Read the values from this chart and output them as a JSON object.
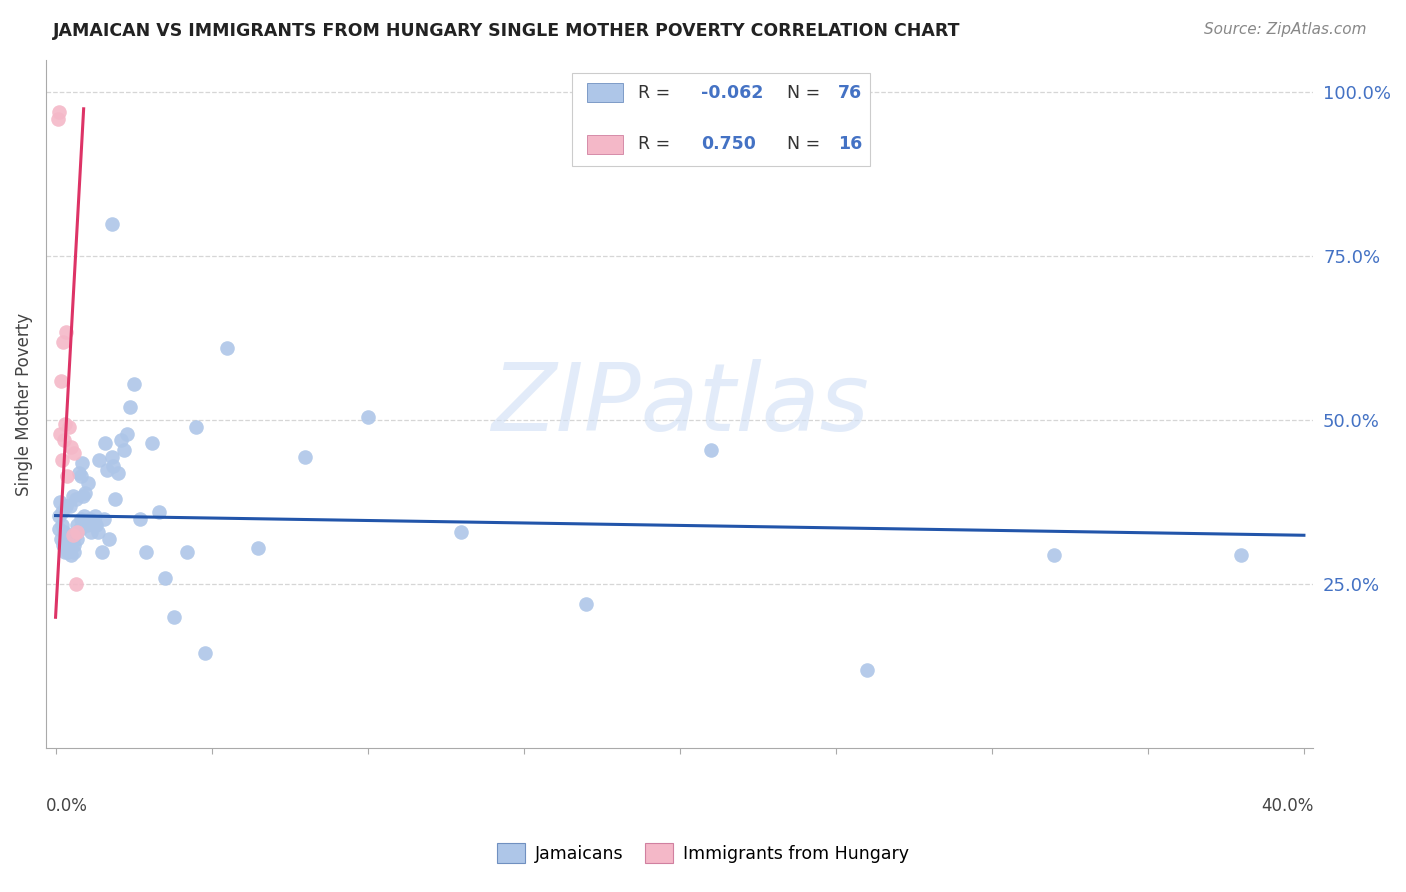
{
  "title": "JAMAICAN VS IMMIGRANTS FROM HUNGARY SINGLE MOTHER POVERTY CORRELATION CHART",
  "source": "Source: ZipAtlas.com",
  "ylabel": "Single Mother Poverty",
  "xlim": [
    0.0,
    0.4
  ],
  "ylim": [
    0.0,
    1.05
  ],
  "y_tick_positions": [
    0.25,
    0.5,
    0.75,
    1.0
  ],
  "y_tick_labels": [
    "25.0%",
    "50.0%",
    "75.0%",
    "100.0%"
  ],
  "jamaicans_R": -0.062,
  "jamaicans_N": 76,
  "hungary_R": 0.75,
  "hungary_N": 16,
  "legend_label_blue": "Jamaicans",
  "legend_label_pink": "Immigrants from Hungary",
  "blue_scatter": "#aec6e8",
  "pink_scatter": "#f4b8c8",
  "line_blue": "#2255aa",
  "line_pink": "#dd3366",
  "right_label_color": "#4472c4",
  "watermark_color": "#d0dff5",
  "watermark_text": "ZIPatlas",
  "j_x": [
    0.001,
    0.0012,
    0.0015,
    0.0018,
    0.002,
    0.0022,
    0.0025,
    0.0028,
    0.003,
    0.0032,
    0.0035,
    0.0038,
    0.004,
    0.0042,
    0.0045,
    0.0048,
    0.005,
    0.0052,
    0.0055,
    0.0058,
    0.006,
    0.0062,
    0.0065,
    0.0068,
    0.007,
    0.0075,
    0.0078,
    0.008,
    0.0082,
    0.0085,
    0.0088,
    0.009,
    0.0095,
    0.01,
    0.0105,
    0.011,
    0.0115,
    0.012,
    0.0125,
    0.013,
    0.0135,
    0.014,
    0.015,
    0.0155,
    0.016,
    0.0165,
    0.017,
    0.018,
    0.0185,
    0.019,
    0.02,
    0.021,
    0.022,
    0.023,
    0.024,
    0.025,
    0.027,
    0.029,
    0.031,
    0.033,
    0.035,
    0.038,
    0.042,
    0.048,
    0.055,
    0.065,
    0.08,
    0.1,
    0.13,
    0.17,
    0.21,
    0.26,
    0.32,
    0.38,
    0.018,
    0.045
  ],
  "j_y": [
    0.335,
    0.355,
    0.375,
    0.32,
    0.34,
    0.36,
    0.31,
    0.33,
    0.3,
    0.325,
    0.37,
    0.315,
    0.3,
    0.325,
    0.37,
    0.315,
    0.295,
    0.32,
    0.385,
    0.31,
    0.3,
    0.325,
    0.38,
    0.32,
    0.34,
    0.42,
    0.335,
    0.415,
    0.35,
    0.435,
    0.385,
    0.355,
    0.39,
    0.34,
    0.405,
    0.35,
    0.33,
    0.34,
    0.355,
    0.34,
    0.33,
    0.44,
    0.3,
    0.35,
    0.465,
    0.425,
    0.32,
    0.445,
    0.43,
    0.38,
    0.42,
    0.47,
    0.455,
    0.48,
    0.52,
    0.555,
    0.35,
    0.3,
    0.465,
    0.36,
    0.26,
    0.2,
    0.3,
    0.145,
    0.61,
    0.305,
    0.445,
    0.505,
    0.33,
    0.22,
    0.455,
    0.12,
    0.295,
    0.295,
    0.8,
    0.49
  ],
  "h_x": [
    0.0008,
    0.001,
    0.0013,
    0.0016,
    0.002,
    0.0023,
    0.0026,
    0.003,
    0.0035,
    0.0038,
    0.0042,
    0.0048,
    0.0055,
    0.006,
    0.0065,
    0.007
  ],
  "h_y": [
    0.96,
    0.97,
    0.48,
    0.56,
    0.44,
    0.62,
    0.47,
    0.495,
    0.635,
    0.415,
    0.49,
    0.46,
    0.325,
    0.45,
    0.25,
    0.33
  ],
  "j_line_x": [
    0.0,
    0.4
  ],
  "j_line_y": [
    0.355,
    0.325
  ],
  "h_line_x": [
    0.0,
    0.009
  ],
  "h_line_y": [
    0.2,
    0.975
  ]
}
